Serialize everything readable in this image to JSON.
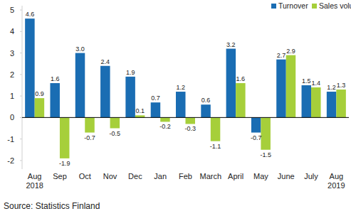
{
  "chart_data": {
    "type": "bar",
    "categories": [
      "Aug 2018",
      "Sep",
      "Oct",
      "Nov",
      "Dec",
      "Jan",
      "Feb",
      "March",
      "April",
      "May",
      "June",
      "July",
      "Aug 2019"
    ],
    "series": [
      {
        "name": "Turnover",
        "color": "#1a6db3",
        "values": [
          4.6,
          1.6,
          3.0,
          2.4,
          1.9,
          0.7,
          1.2,
          0.6,
          3.2,
          -0.7,
          2.7,
          1.5,
          1.2
        ],
        "value_labels": [
          "4.6",
          "1.6",
          "3.0",
          "2.4",
          "1.9",
          "0.7",
          "1.2",
          "0.6",
          "3.2",
          "-0.7",
          "2.7",
          "1.5",
          "1.2"
        ]
      },
      {
        "name": "Sales volume",
        "color": "#a6cf3a",
        "values": [
          0.9,
          -1.9,
          -0.7,
          -0.5,
          0.1,
          -0.2,
          -0.3,
          -1.1,
          1.6,
          -1.5,
          2.9,
          1.4,
          1.3
        ],
        "value_labels": [
          "0.9",
          "-1.9",
          "-0.7",
          "-0.5",
          "0.1",
          "-0.2",
          "-0.3",
          "-1.1",
          "1.6",
          "-1.5",
          "2.9",
          "1.4",
          "1.3"
        ]
      }
    ],
    "ylim": [
      -2.4,
      5.2
    ],
    "yticks": [
      -2,
      -1,
      0,
      1,
      2,
      3,
      4,
      5
    ],
    "grid": false,
    "legend": "upper right",
    "data_labels": true,
    "source": "Source: Statistics Finland"
  }
}
